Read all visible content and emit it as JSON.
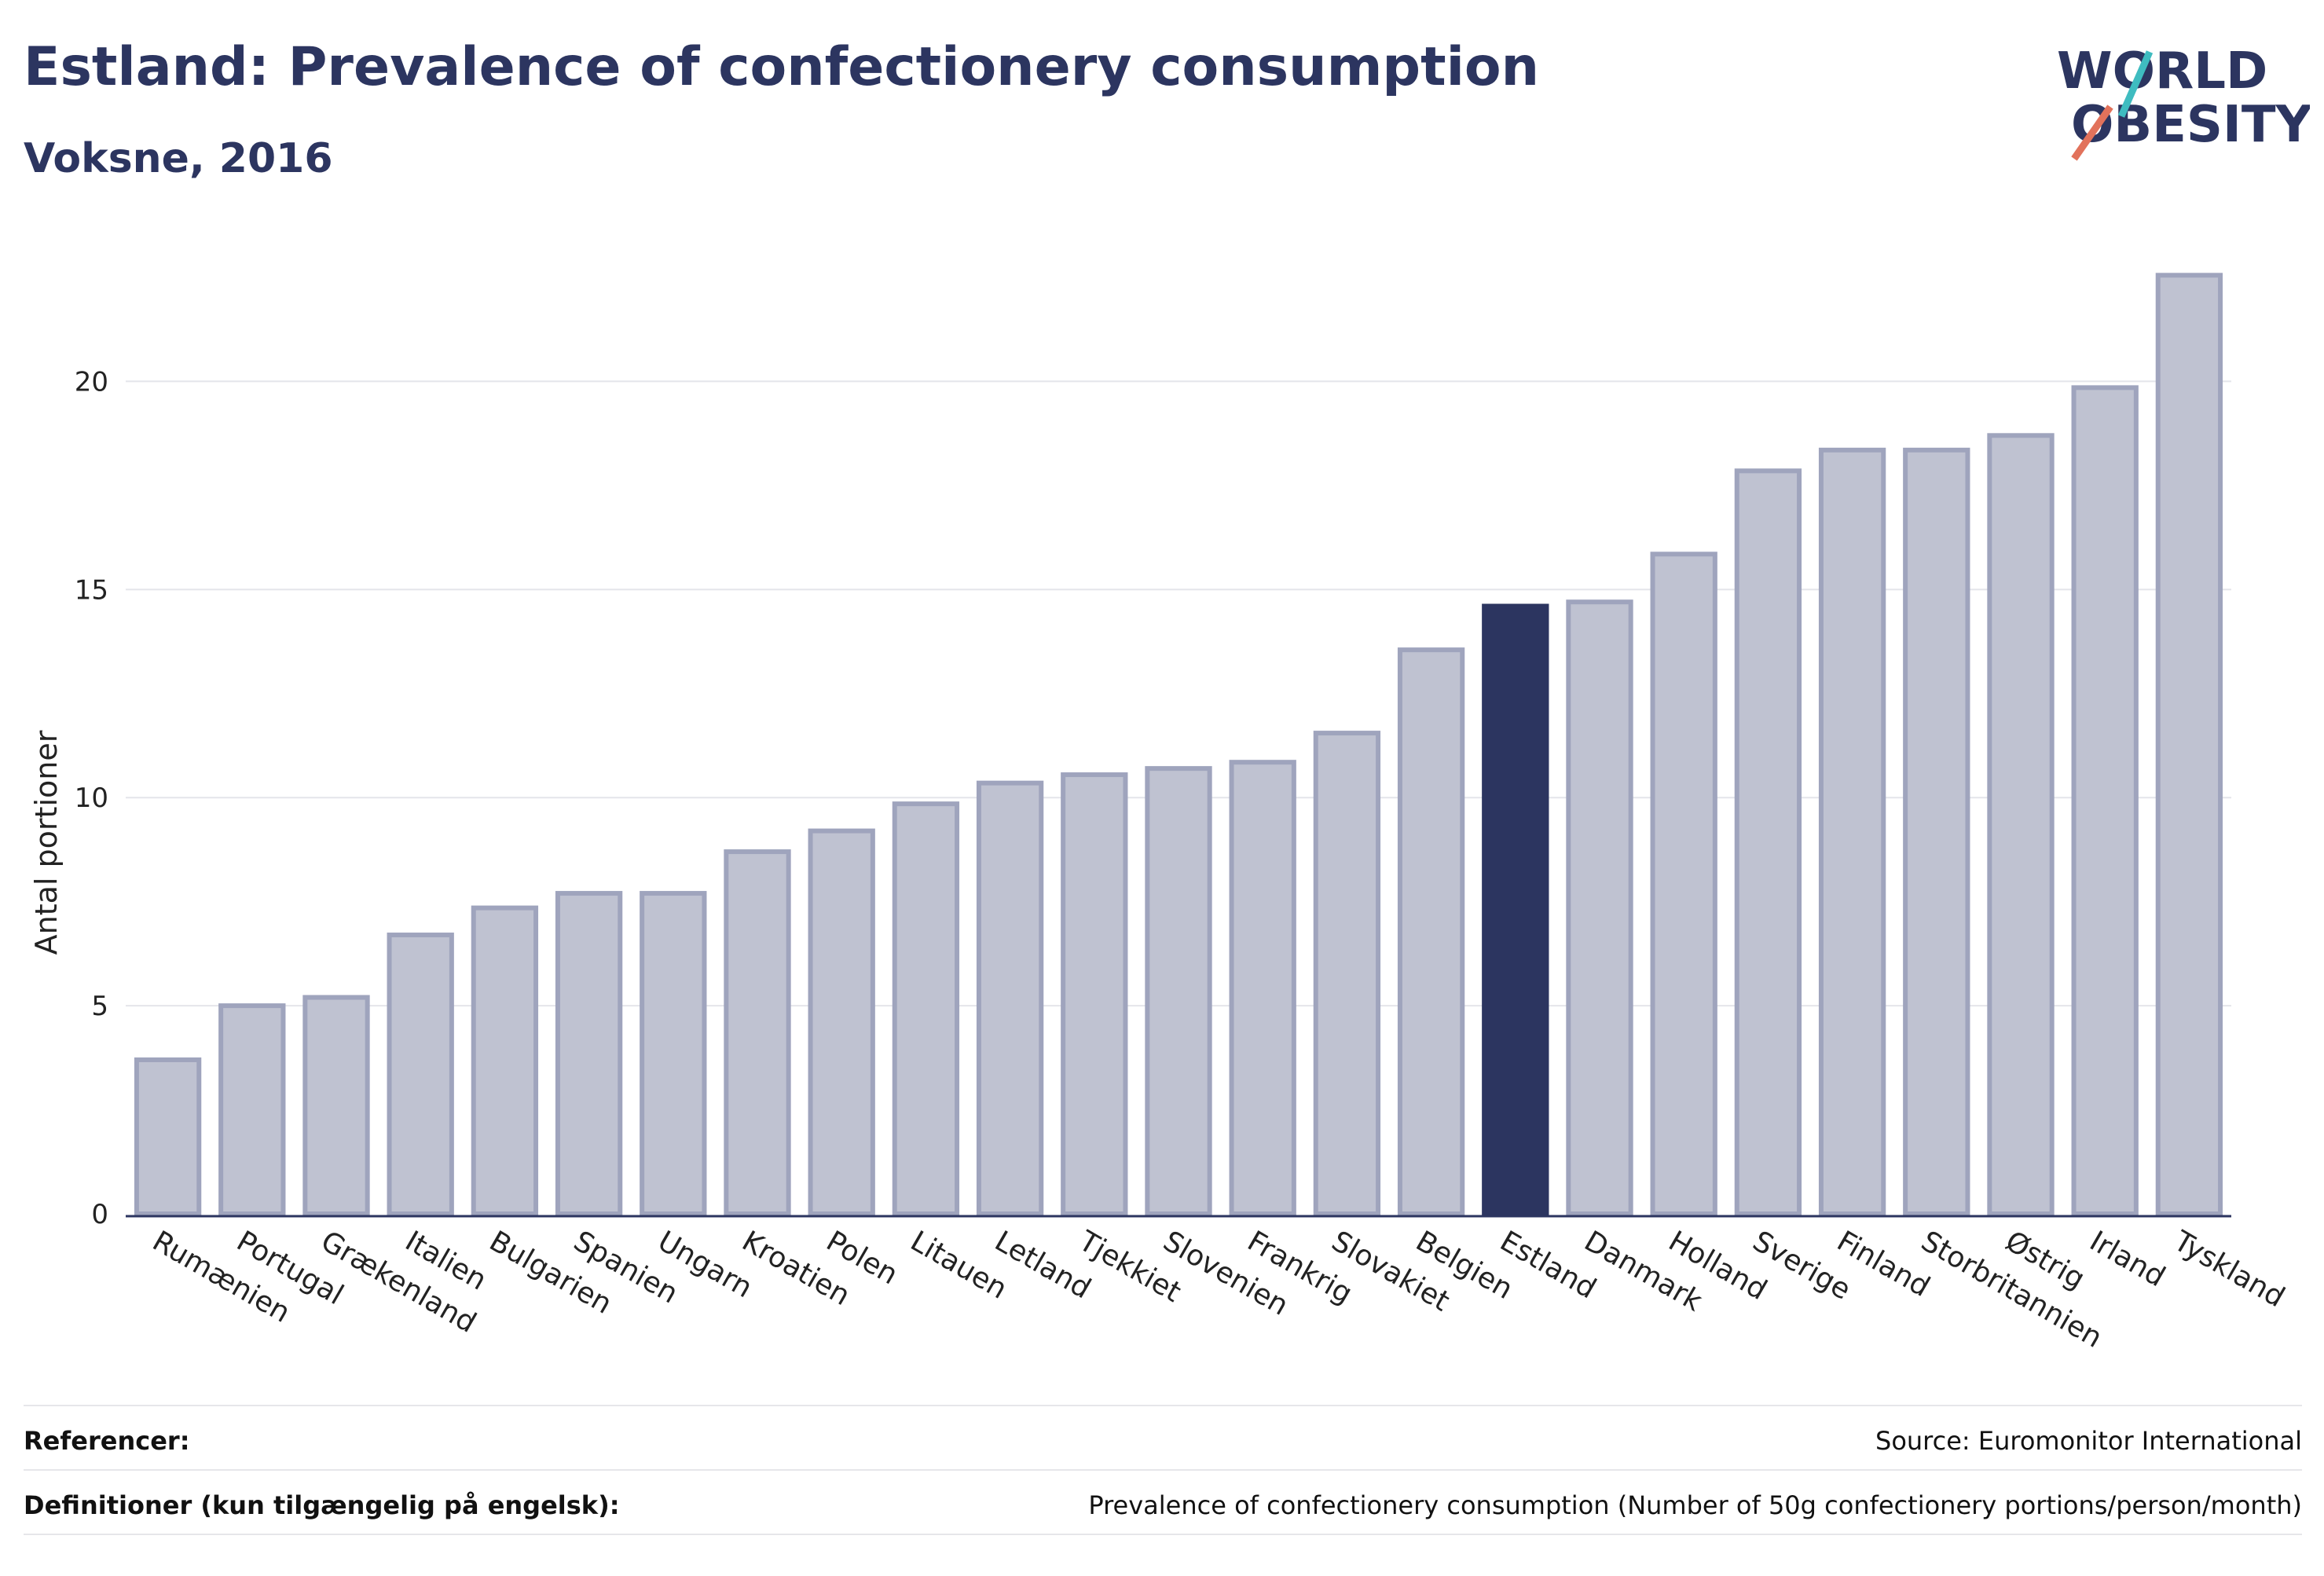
{
  "title": "Estland: Prevalence of confectionery consumption",
  "subtitle": "Voksne, 2016",
  "logo": {
    "line1": "WORLD",
    "line2": "OBESITY"
  },
  "colors": {
    "bar": "#bfc2d1",
    "bar_edge": "#9fa4bd",
    "highlight": "#2c3560",
    "grid": "#e4e5ea",
    "logo_teal": "#3fbcc0",
    "logo_coral": "#e2725b"
  },
  "chart_data": {
    "type": "bar",
    "categories": [
      "Rumænien",
      "Portugal",
      "Grækenland",
      "Italien",
      "Bulgarien",
      "Spanien",
      "Ungarn",
      "Kroatien",
      "Polen",
      "Litauen",
      "Letland",
      "Tjekkiet",
      "Slovenien",
      "Frankrig",
      "Slovakiet",
      "Belgien",
      "Estland",
      "Danmark",
      "Holland",
      "Sverige",
      "Finland",
      "Storbritannien",
      "Østrig",
      "Irland",
      "Tyskland"
    ],
    "values": [
      3.7,
      5.0,
      5.2,
      6.7,
      7.35,
      7.7,
      7.7,
      8.7,
      9.2,
      9.85,
      10.35,
      10.55,
      10.7,
      10.85,
      11.55,
      13.55,
      14.6,
      14.7,
      15.85,
      17.85,
      18.35,
      18.35,
      18.7,
      19.85,
      22.55
    ],
    "highlight": "Estland",
    "ylabel": "Antal portioner",
    "xlabel": "",
    "ylim": [
      0,
      23.5
    ],
    "yticks": [
      0,
      5,
      10,
      15,
      20
    ],
    "grid": true,
    "legend": "none"
  },
  "footer": {
    "references_label": "Referencer:",
    "references_value": "Source: Euromonitor International",
    "definitions_label": "Definitioner (kun tilgængelig på engelsk):",
    "definitions_value": "Prevalence of confectionery consumption (Number of 50g confectionery portions/person/month)"
  }
}
